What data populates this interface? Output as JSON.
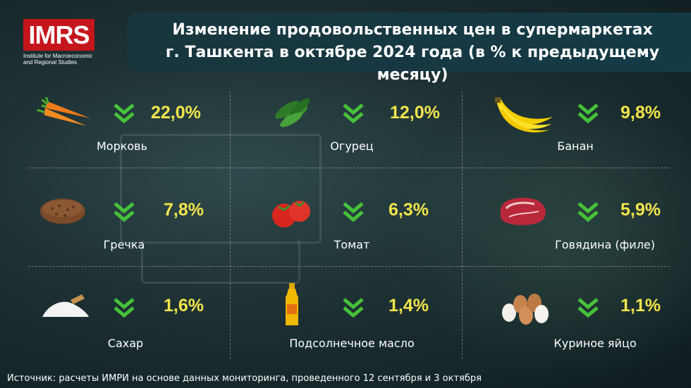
{
  "logo": {
    "text": "IMRS",
    "subtitle_line1": "Institute for Macroeconomic",
    "subtitle_line2": "and Regional Studies"
  },
  "title": {
    "line1": "Изменение продовольственных цен в супермаркетах",
    "line2": "г. Ташкента в октябре 2024 года (в % к предыдущему месяцу)"
  },
  "colors": {
    "accent_value": "#f2e64a",
    "arrow": "#46c23a",
    "brand_red": "#c4161c"
  },
  "items": [
    {
      "name": "Морковь",
      "value": "22,0%",
      "icon": "carrot-icon",
      "direction": "down"
    },
    {
      "name": "Огурец",
      "value": "12,0%",
      "icon": "cucumber-icon",
      "direction": "down"
    },
    {
      "name": "Банан",
      "value": "9,8%",
      "icon": "banana-icon",
      "direction": "down"
    },
    {
      "name": "Гречка",
      "value": "7,8%",
      "icon": "buckwheat-icon",
      "direction": "down"
    },
    {
      "name": "Томат",
      "value": "6,3%",
      "icon": "tomato-icon",
      "direction": "down"
    },
    {
      "name": "Говядина (филе)",
      "value": "5,9%",
      "icon": "beef-icon",
      "direction": "down"
    },
    {
      "name": "Сахар",
      "value": "1,6%",
      "icon": "sugar-icon",
      "direction": "down"
    },
    {
      "name": "Подсолнечное масло",
      "value": "1,4%",
      "icon": "oil-bottle-icon",
      "direction": "down"
    },
    {
      "name": "Куриное яйцо",
      "value": "1,1%",
      "icon": "eggs-icon",
      "direction": "down"
    }
  ],
  "source": "Источник: расчеты ИМРИ на основе данных мониторинга, проведенного 12 сентября и 3 октября"
}
